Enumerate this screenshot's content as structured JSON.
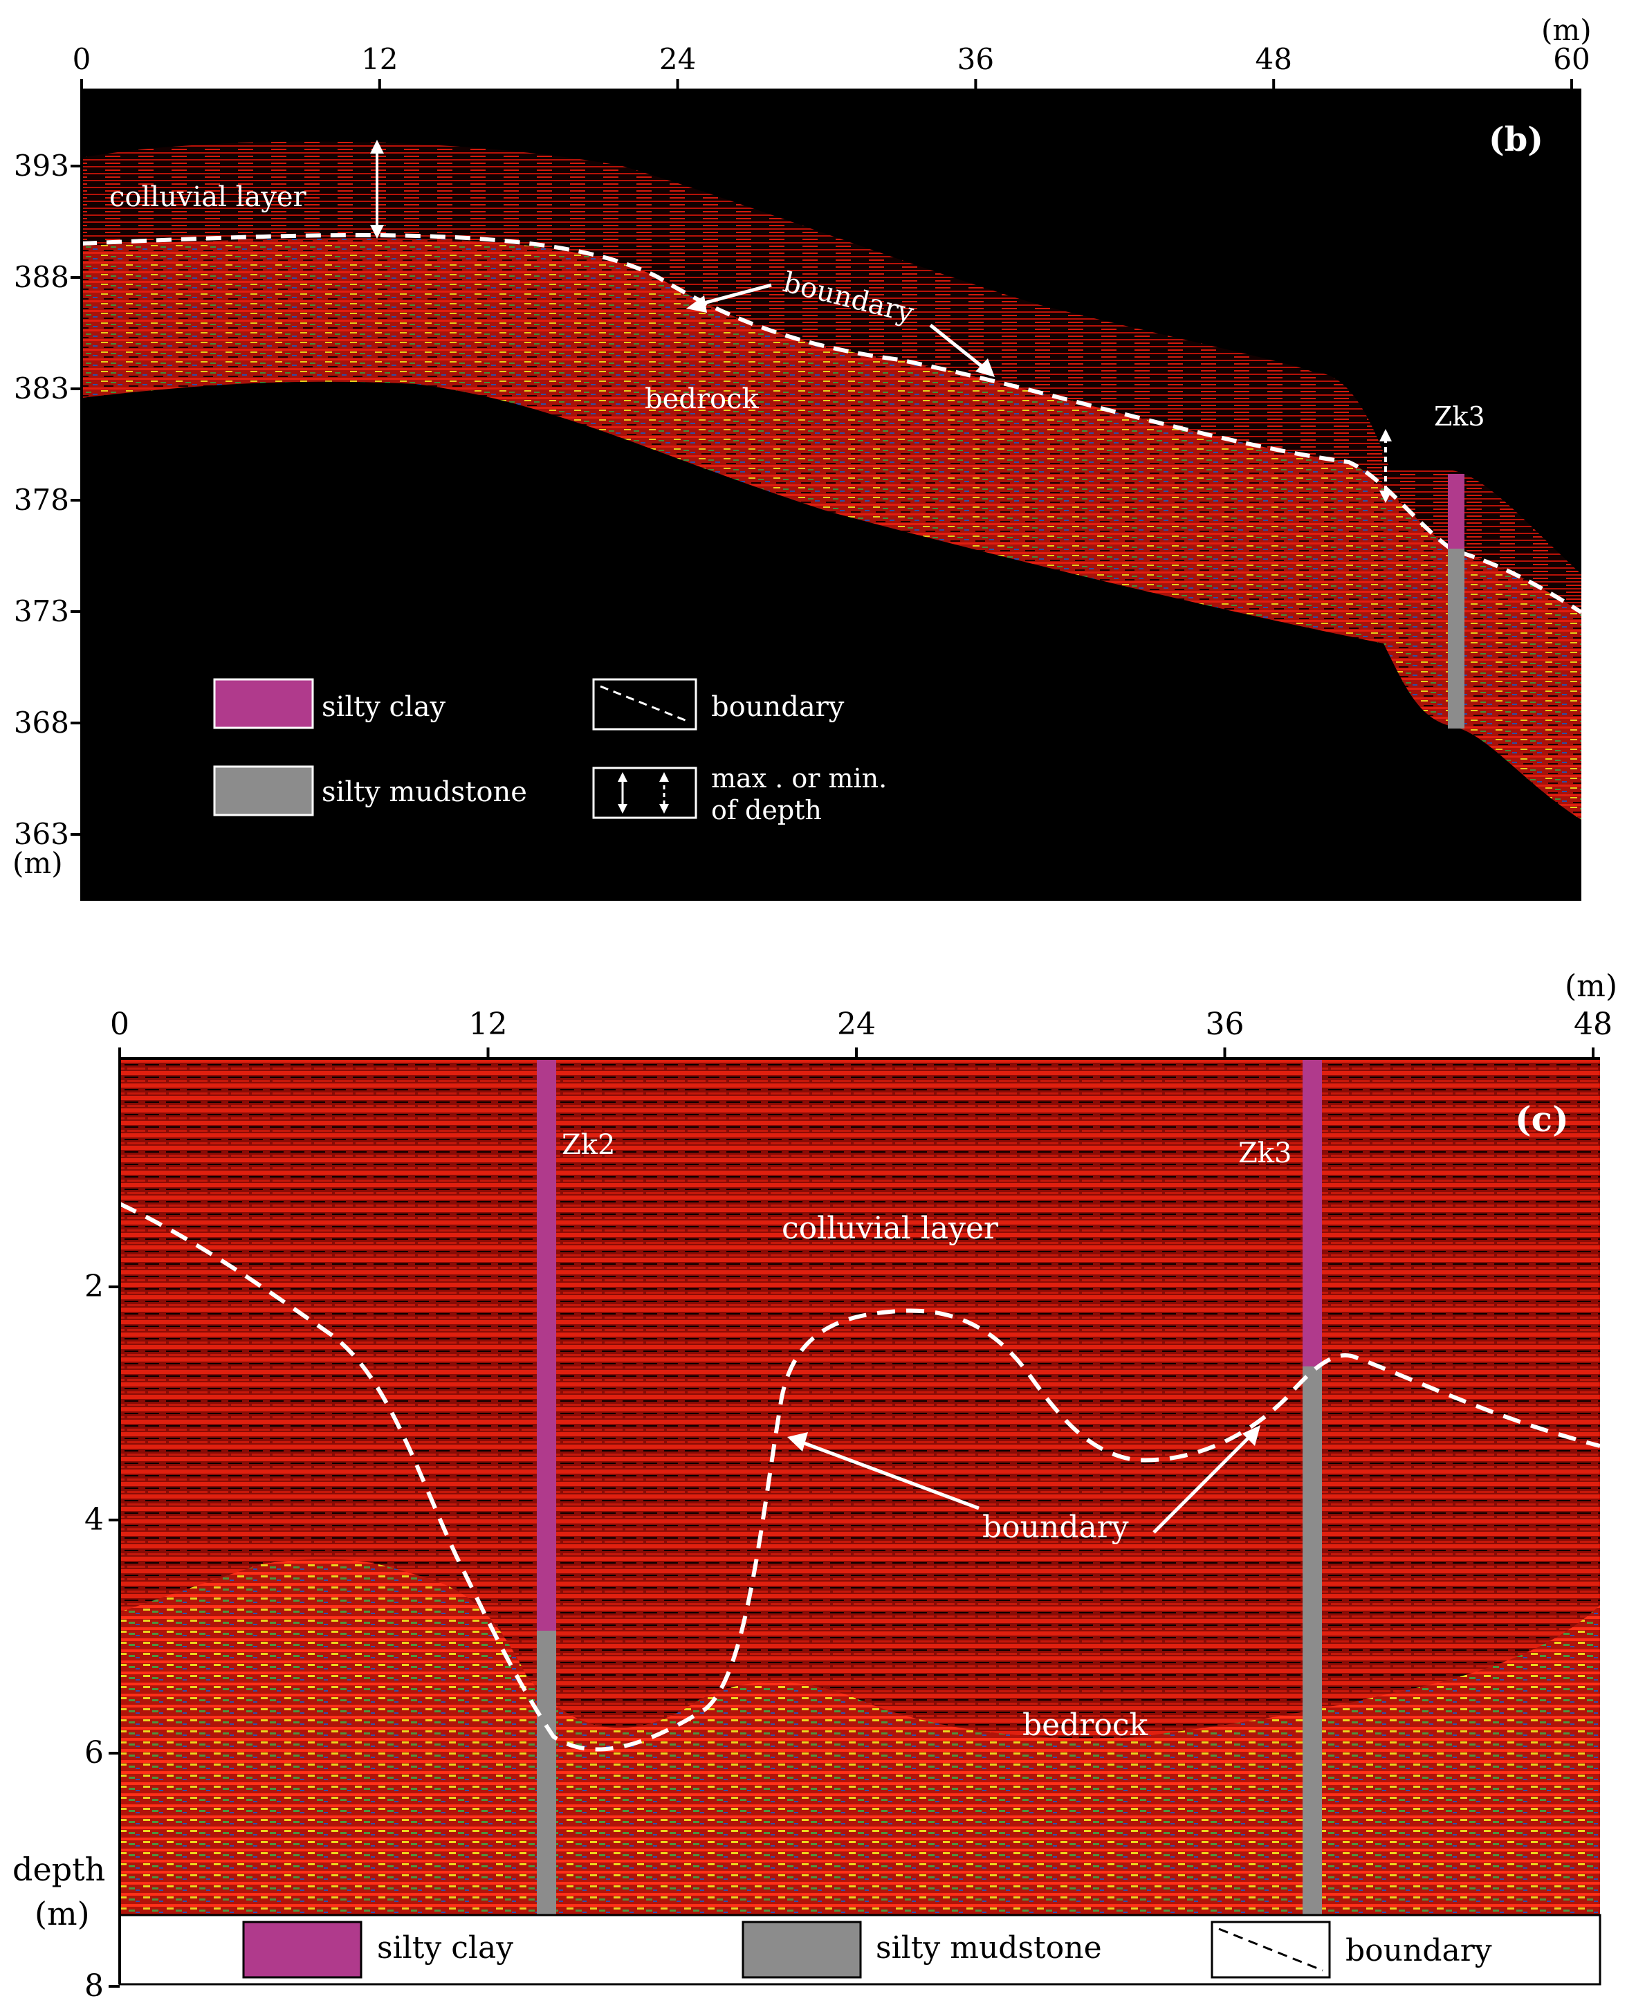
{
  "panel_b": {
    "label": "(b)",
    "x_ticks": [
      "0",
      "12",
      "24",
      "36",
      "48",
      "60"
    ],
    "x_unit": "(m)",
    "y_ticks": [
      "393",
      "388",
      "383",
      "378",
      "373",
      "368",
      "363"
    ],
    "y_unit": "(m)",
    "annotations": {
      "colluvial": "colluvial  layer",
      "boundary": "boundary",
      "bedrock": "bedrock",
      "borehole": "Zk3"
    },
    "legend": {
      "silty_clay": "silty clay",
      "silty_mudstone": "silty mudstone",
      "boundary": "boundary",
      "depth_line1": "max . or min.",
      "depth_line2": "of depth"
    }
  },
  "panel_c": {
    "label": "(c)",
    "x_ticks": [
      "0",
      "12",
      "24",
      "36",
      "48"
    ],
    "x_unit": "(m)",
    "y_ticks": [
      "2",
      "4",
      "6",
      "8"
    ],
    "y_label_line1": "depth",
    "y_label_line2": "(m)",
    "annotations": {
      "borehole_1": "Zk2",
      "borehole_2": "Zk3",
      "colluvial": "colluvial  layer",
      "boundary": "boundary",
      "bedrock": "bedrock"
    },
    "legend": {
      "silty_clay": "silty clay",
      "silty_mudstone": "silty mudstone",
      "boundary": "boundary"
    }
  },
  "colors": {
    "silty_clay": "#b03a8c",
    "silty_mudstone": "#8c8c8c",
    "background": "#000000",
    "radar_red": "#c8140a"
  }
}
